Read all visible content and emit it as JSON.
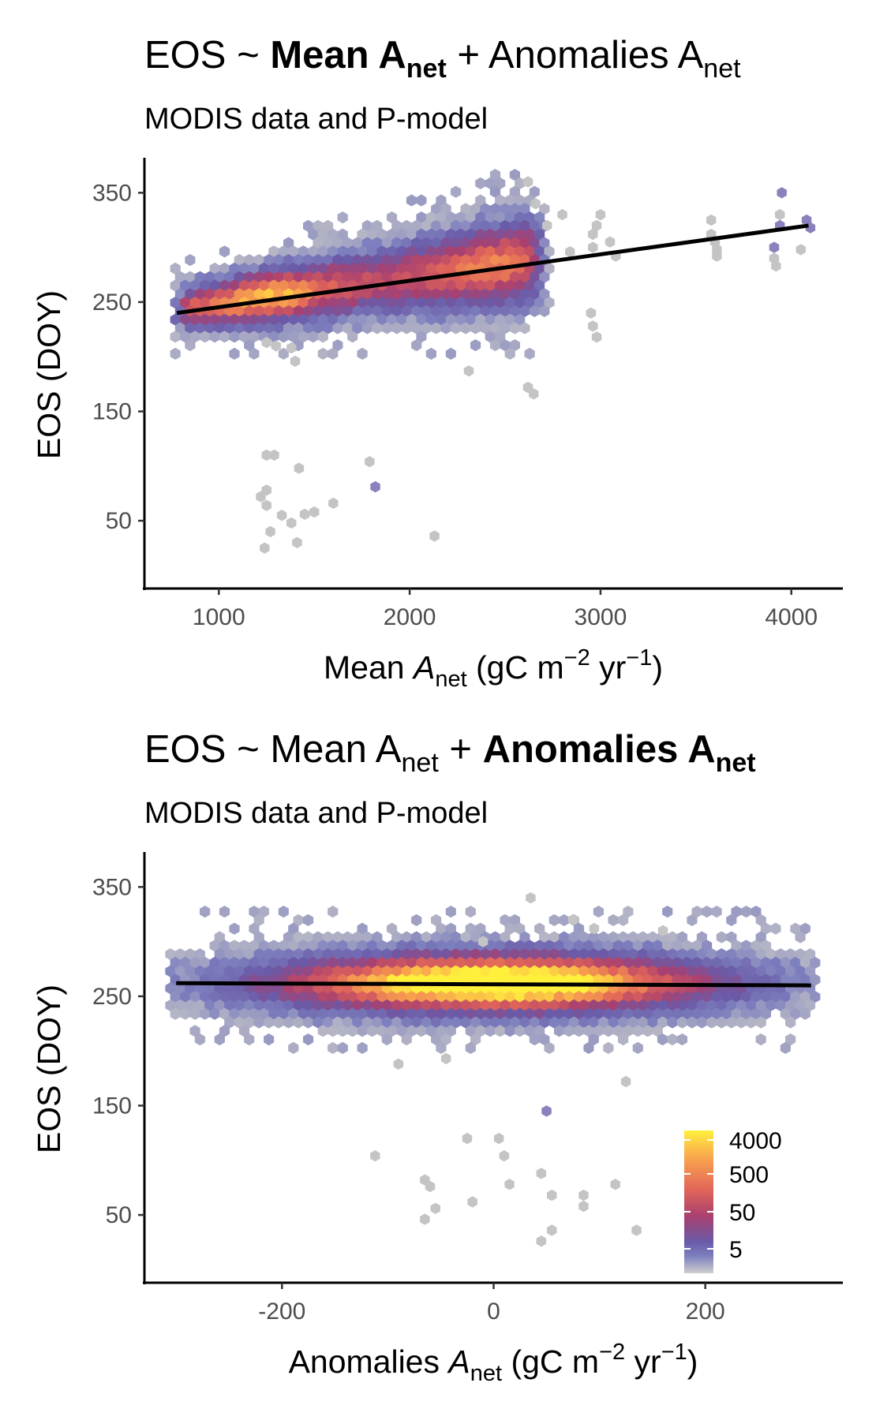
{
  "chart_data": [
    {
      "type": "hexbin",
      "title": {
        "prefix": "EOS ~ ",
        "term1": "Mean A",
        "term1_sub": "net",
        "plus": " + ",
        "term2": "Anomalies A",
        "term2_sub": "net",
        "bold_term": 1
      },
      "subtitle": "MODIS data and P-model",
      "xlabel": {
        "pre": "Mean ",
        "var": "A",
        "sub": "net",
        "unit_pre": " (gC m",
        "exp1": "−2",
        "mid": " yr",
        "exp2": "−1",
        "post": ")"
      },
      "ylabel": "EOS (DOY)",
      "xlim": [
        610,
        4270
      ],
      "ylim": [
        -12,
        382
      ],
      "xticks": [
        1000,
        2000,
        3000,
        4000
      ],
      "yticks": [
        50,
        150,
        250,
        350
      ],
      "xtick_labels": [
        "1000",
        "2000",
        "3000",
        "4000"
      ],
      "ytick_labels": [
        "50",
        "150",
        "250",
        "350"
      ],
      "fit_line": {
        "x": [
          780,
          4090
        ],
        "y": [
          240,
          320
        ]
      },
      "outliers": [
        [
          1250,
          110
        ],
        [
          1290,
          110
        ],
        [
          1420,
          98
        ],
        [
          1790,
          104
        ],
        [
          1220,
          72
        ],
        [
          1250,
          78
        ],
        [
          1250,
          64
        ],
        [
          1330,
          55
        ],
        [
          1380,
          48
        ],
        [
          1450,
          56
        ],
        [
          1500,
          58
        ],
        [
          1600,
          66
        ],
        [
          1270,
          40
        ],
        [
          1410,
          30
        ],
        [
          1240,
          25
        ],
        [
          1820,
          81
        ],
        [
          2130,
          36
        ],
        [
          2310,
          187
        ],
        [
          2620,
          172
        ],
        [
          2650,
          166
        ],
        [
          1400,
          196
        ],
        [
          1380,
          208
        ],
        [
          1300,
          210
        ],
        [
          1250,
          213
        ]
      ],
      "upper_points": [
        [
          3600,
          305
        ],
        [
          3610,
          298
        ],
        [
          3610,
          292
        ],
        [
          3580,
          312
        ],
        [
          3580,
          325
        ],
        [
          3910,
          300
        ],
        [
          3910,
          290
        ],
        [
          3920,
          283
        ],
        [
          3940,
          320
        ],
        [
          3940,
          330
        ],
        [
          3950,
          350
        ],
        [
          4050,
          298
        ],
        [
          4100,
          318
        ],
        [
          4080,
          325
        ],
        [
          3000,
          330
        ],
        [
          2980,
          320
        ],
        [
          2960,
          312
        ],
        [
          2960,
          300
        ],
        [
          3050,
          305
        ],
        [
          3080,
          292
        ],
        [
          2950,
          240
        ],
        [
          2960,
          228
        ],
        [
          2980,
          218
        ],
        [
          2840,
          296
        ],
        [
          2800,
          330
        ],
        [
          2720,
          320
        ],
        [
          2660,
          340
        ],
        [
          2620,
          360
        ]
      ],
      "main_density": {
        "x_from": 780,
        "x_to": 2700,
        "peak_x": 1230,
        "peak_y": 250
      }
    },
    {
      "type": "hexbin",
      "title": {
        "prefix": "EOS ~ ",
        "term1": "Mean A",
        "term1_sub": "net",
        "plus": " + ",
        "term2": "Anomalies A",
        "term2_sub": "net",
        "bold_term": 2
      },
      "subtitle": "MODIS data and P-model",
      "xlabel": {
        "pre": "Anomalies ",
        "var": "A",
        "sub": "net",
        "unit_pre": " (gC m",
        "exp1": "−2",
        "mid": " yr",
        "exp2": "−1",
        "post": ")"
      },
      "ylabel": "EOS (DOY)",
      "xlim": [
        -330,
        330
      ],
      "ylim": [
        -12,
        382
      ],
      "xticks": [
        -200,
        0,
        200
      ],
      "yticks": [
        50,
        150,
        250,
        350
      ],
      "xtick_labels": [
        "-200",
        "0",
        "200"
      ],
      "ytick_labels": [
        "50",
        "150",
        "250",
        "350"
      ],
      "fit_line": {
        "x": [
          -300,
          300
        ],
        "y": [
          262,
          260
        ]
      },
      "outliers": [
        [
          -112,
          104
        ],
        [
          -25,
          120
        ],
        [
          5,
          120
        ],
        [
          10,
          104
        ],
        [
          -65,
          82
        ],
        [
          -60,
          76
        ],
        [
          -65,
          46
        ],
        [
          -55,
          56
        ],
        [
          -20,
          62
        ],
        [
          15,
          78
        ],
        [
          45,
          88
        ],
        [
          55,
          68
        ],
        [
          85,
          58
        ],
        [
          85,
          68
        ],
        [
          115,
          78
        ],
        [
          45,
          26
        ],
        [
          55,
          36
        ],
        [
          135,
          36
        ],
        [
          -90,
          188
        ],
        [
          -45,
          193
        ],
        [
          125,
          172
        ],
        [
          50,
          145
        ],
        [
          -10,
          300
        ],
        [
          35,
          340
        ],
        [
          75,
          320
        ],
        [
          95,
          312
        ],
        [
          160,
          310
        ]
      ],
      "main_density": {
        "x_from": -300,
        "x_to": 300,
        "peak_x": 0,
        "peak_y": 262
      }
    }
  ],
  "legend": {
    "labels": [
      "4000",
      "500",
      "50",
      "5"
    ],
    "colors": [
      "#fff03c",
      "#f9a24e",
      "#e0645a",
      "#a9406f",
      "#6a5aa8",
      "#6f72b8",
      "#c8c8c8"
    ]
  }
}
